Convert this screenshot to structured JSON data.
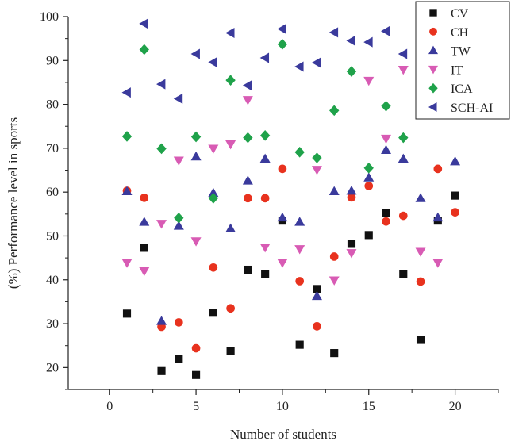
{
  "chart_data": {
    "type": "scatter",
    "xlabel": "Number of students",
    "ylabel": "(%) Performance level in sports",
    "xlim": [
      -2.4,
      22.5
    ],
    "ylim": [
      15,
      100
    ],
    "x_ticks": [
      0,
      5,
      10,
      15,
      20
    ],
    "y_ticks": [
      20,
      30,
      40,
      50,
      60,
      70,
      80,
      90,
      100
    ],
    "grid": false,
    "legend_position": "top-right",
    "series": [
      {
        "name": "CV",
        "marker": "square",
        "color": "#111111",
        "x": [
          1,
          2,
          3,
          4,
          5,
          6,
          7,
          8,
          9,
          10,
          11,
          12,
          13,
          14,
          15,
          16,
          17,
          18,
          19,
          20
        ],
        "y": [
          32.3,
          47.3,
          19.2,
          22.0,
          18.3,
          32.5,
          23.7,
          42.3,
          41.3,
          53.5,
          25.2,
          37.9,
          23.3,
          48.2,
          50.2,
          55.2,
          41.3,
          26.3,
          53.5,
          59.2
        ]
      },
      {
        "name": "CH",
        "marker": "circle",
        "color": "#e8321e",
        "x": [
          1,
          2,
          3,
          4,
          5,
          6,
          7,
          8,
          9,
          10,
          11,
          12,
          13,
          14,
          15,
          16,
          17,
          18,
          19,
          20
        ],
        "y": [
          60.3,
          58.7,
          29.3,
          30.3,
          24.4,
          42.8,
          33.5,
          58.6,
          58.6,
          65.3,
          39.7,
          29.4,
          45.3,
          58.8,
          61.4,
          53.3,
          54.6,
          39.6,
          65.3,
          55.4
        ]
      },
      {
        "name": "TW",
        "marker": "triangle-up",
        "color": "#3a3a9c",
        "x": [
          1,
          2,
          3,
          4,
          5,
          6,
          7,
          8,
          9,
          10,
          11,
          12,
          13,
          14,
          15,
          16,
          17,
          18,
          19,
          20
        ],
        "y": [
          60.2,
          53.2,
          30.6,
          52.3,
          68.1,
          59.8,
          51.7,
          62.6,
          67.6,
          54.2,
          53.2,
          36.3,
          60.2,
          60.3,
          63.3,
          69.6,
          67.6,
          58.6,
          54.2,
          67.0
        ]
      },
      {
        "name": "IT",
        "marker": "triangle-down",
        "color": "#d85bb4",
        "x": [
          1,
          2,
          3,
          4,
          5,
          6,
          7,
          8,
          9,
          10,
          11,
          12,
          13,
          14,
          15,
          16,
          17,
          18,
          19,
          20
        ],
        "y": [
          43.9,
          42.0,
          52.8,
          67.2,
          48.8,
          69.9,
          70.9,
          81.0,
          47.4,
          43.9,
          47.0,
          65.1,
          39.9,
          46.1,
          85.4,
          72.2,
          87.9,
          46.4,
          43.9,
          79.0
        ]
      },
      {
        "name": "ICA",
        "marker": "diamond",
        "color": "#1fa24a",
        "x": [
          1,
          2,
          3,
          4,
          5,
          6,
          7,
          8,
          9,
          10,
          11,
          12,
          13,
          14,
          15,
          16,
          17,
          18,
          19,
          20
        ],
        "y": [
          72.7,
          92.5,
          69.9,
          54.1,
          72.6,
          58.6,
          85.5,
          72.4,
          72.9,
          93.7,
          69.1,
          67.8,
          78.6,
          87.5,
          65.5,
          79.6,
          72.4,
          81.0,
          90.0,
          79.4
        ]
      },
      {
        "name": "SCH-AI",
        "marker": "triangle-left",
        "color": "#3a3a9c",
        "x": [
          1,
          2,
          3,
          4,
          5,
          6,
          7,
          8,
          9,
          10,
          11,
          12,
          13,
          14,
          15,
          16,
          17,
          18,
          19,
          20
        ],
        "y": [
          82.7,
          98.4,
          84.6,
          81.3,
          91.5,
          89.6,
          96.3,
          84.3,
          90.6,
          97.2,
          88.6,
          89.5,
          96.4,
          94.5,
          94.2,
          96.7,
          91.5,
          96.8,
          94.5,
          96.0
        ]
      }
    ]
  }
}
